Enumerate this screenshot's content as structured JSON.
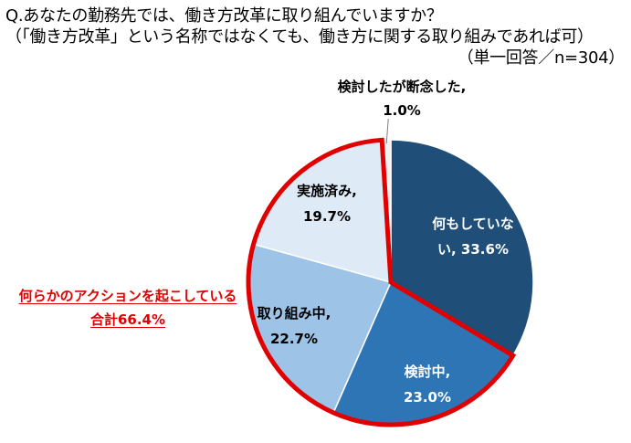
{
  "question": {
    "line1": "Q.あなたの勤務先では、働き方改革に取り組んでいますか？",
    "line2": "（「働き方改革」という名称ではなくても、働き方に関する取り組みであれば可）",
    "line3": "（単一回答／n=304）"
  },
  "callout": {
    "line1": "何らかのアクションを起こしている",
    "line2": "合計66.4%"
  },
  "chart_data": {
    "type": "pie",
    "title": "",
    "slices": [
      {
        "label": "何もしていない, 33.6%",
        "name_lines": [
          "何もしていな",
          "い, 33.6%"
        ],
        "value": 33.6,
        "color": "#1f4e79",
        "label_color": "white",
        "highlight": false
      },
      {
        "label": "検討中, 23.0%",
        "name_lines": [
          "検討中,",
          "23.0%"
        ],
        "value": 23.0,
        "color": "#2e75b6",
        "label_color": "white",
        "highlight": true
      },
      {
        "label": "取り組み中, 22.7%",
        "name_lines": [
          "取り組み中,",
          "22.7%"
        ],
        "value": 22.7,
        "color": "#9dc3e6",
        "label_color": "dark",
        "highlight": true
      },
      {
        "label": "実施済み, 19.7%",
        "name_lines": [
          "実施済み,",
          "19.7%"
        ],
        "value": 19.7,
        "color": "#deebf7",
        "label_color": "dark",
        "highlight": true
      },
      {
        "label": "検討したが断念した, 1.0%",
        "name_lines": [
          "検討したが断念した,",
          "1.0%"
        ],
        "value": 1.0,
        "color": "#f2f2f2",
        "label_color": "dark",
        "highlight": false
      }
    ],
    "highlight_color": "#e00000",
    "highlight_total": "66.4%"
  }
}
